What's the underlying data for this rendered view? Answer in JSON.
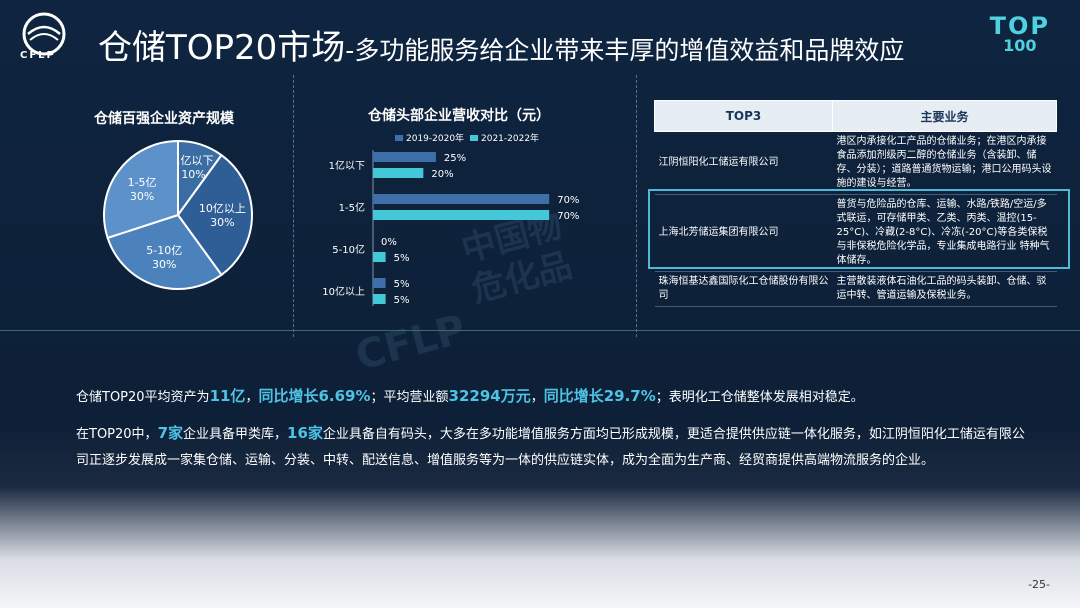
{
  "header": {
    "logo_text": "CFLP",
    "title_main": "仓储TOP20市场",
    "title_sub": "-多功能服务给企业带来丰厚的增值效益和品牌效应",
    "badge_top": "TOP",
    "badge_num": "100"
  },
  "chart_data": [
    {
      "type": "pie",
      "title": "仓储百强企业资产规模",
      "slices": [
        {
          "label": "1亿以下",
          "value": 10,
          "text": "10%"
        },
        {
          "label": "10亿以上",
          "value": 30,
          "text": "30%"
        },
        {
          "label": "5-10亿",
          "value": 30,
          "text": "30%"
        },
        {
          "label": "1-5亿",
          "value": 30,
          "text": "30%"
        }
      ],
      "colors": [
        "#3a6da3",
        "#2e5e95",
        "#4c82bb",
        "#5c91c9"
      ]
    },
    {
      "type": "bar",
      "orientation": "horizontal",
      "title": "仓储头部企业营收对比（元）",
      "categories": [
        "1亿以下",
        "1-5亿",
        "5-10亿",
        "10亿以上"
      ],
      "series": [
        {
          "name": "2019-2020年",
          "values": [
            25,
            70,
            0,
            5
          ],
          "labels": [
            "25%",
            "70%",
            "0%",
            "5%"
          ],
          "color": "#3f6fa8"
        },
        {
          "name": "2021-2022年",
          "values": [
            20,
            70,
            5,
            5
          ],
          "labels": [
            "20%",
            "70%",
            "5%",
            "5%"
          ],
          "color": "#44c8d8"
        }
      ],
      "xlim": [
        0,
        100
      ],
      "legend": "top"
    }
  ],
  "table": {
    "headers": [
      "TOP3",
      "主要业务"
    ],
    "rows": [
      {
        "company": "江阴恒阳化工储运有限公司",
        "business": "港区内承接化工产品的仓储业务；在港区内承接食品添加剂级丙二醇的仓储业务（含装卸、储存、分装）；道路普通货物运输；港口公用码头设施的建设与经营。"
      },
      {
        "company": "上海北芳储运集团有限公司",
        "business": "普货与危险品的仓库、运输、水路/铁路/空运/多式联运，可存储甲类、乙类、丙类、温控(15-25°C)、冷藏(2-8°C)、冷冻(-20°C)等各类保税与非保税危险化学品，专业集成电路行业 特种气体储存。"
      },
      {
        "company": "珠海恒基达鑫国际化工仓储股份有限公司",
        "business": "主营散装液体石油化工品的码头装卸、仓储、驳运中转、管道运输及保税业务。"
      }
    ]
  },
  "paragraph1": {
    "p1": "仓储TOP20平均资产为",
    "v1": "11亿",
    "p2": "，",
    "v2": "同比增长6.69%",
    "p3": "；平均营业额",
    "v3": "32294万元",
    "p4": "，",
    "v4": "同比增长29.7%",
    "p5": "；表明化工仓储整体发展相对稳定。"
  },
  "paragraph2": {
    "p1": "在TOP20中，",
    "v1": "7家",
    "p2": "企业具备甲类库，",
    "v2": "16家",
    "p3": "企业具备自有码头，大多在多功能增值服务方面均已形成规模，更适合提供供应链一体化服务，如江阴恒阳化工储运有限公司正逐步发展成一家集仓储、运输、分装、中转、配送信息、增值服务等为一体的供应链实体，成为全面为生产商、经贸商提供高端物流服务的企业。"
  },
  "watermarks": {
    "cflp": "CFLP",
    "cn1": "中国物",
    "cn2": "危化品"
  },
  "page_number": "-25-"
}
